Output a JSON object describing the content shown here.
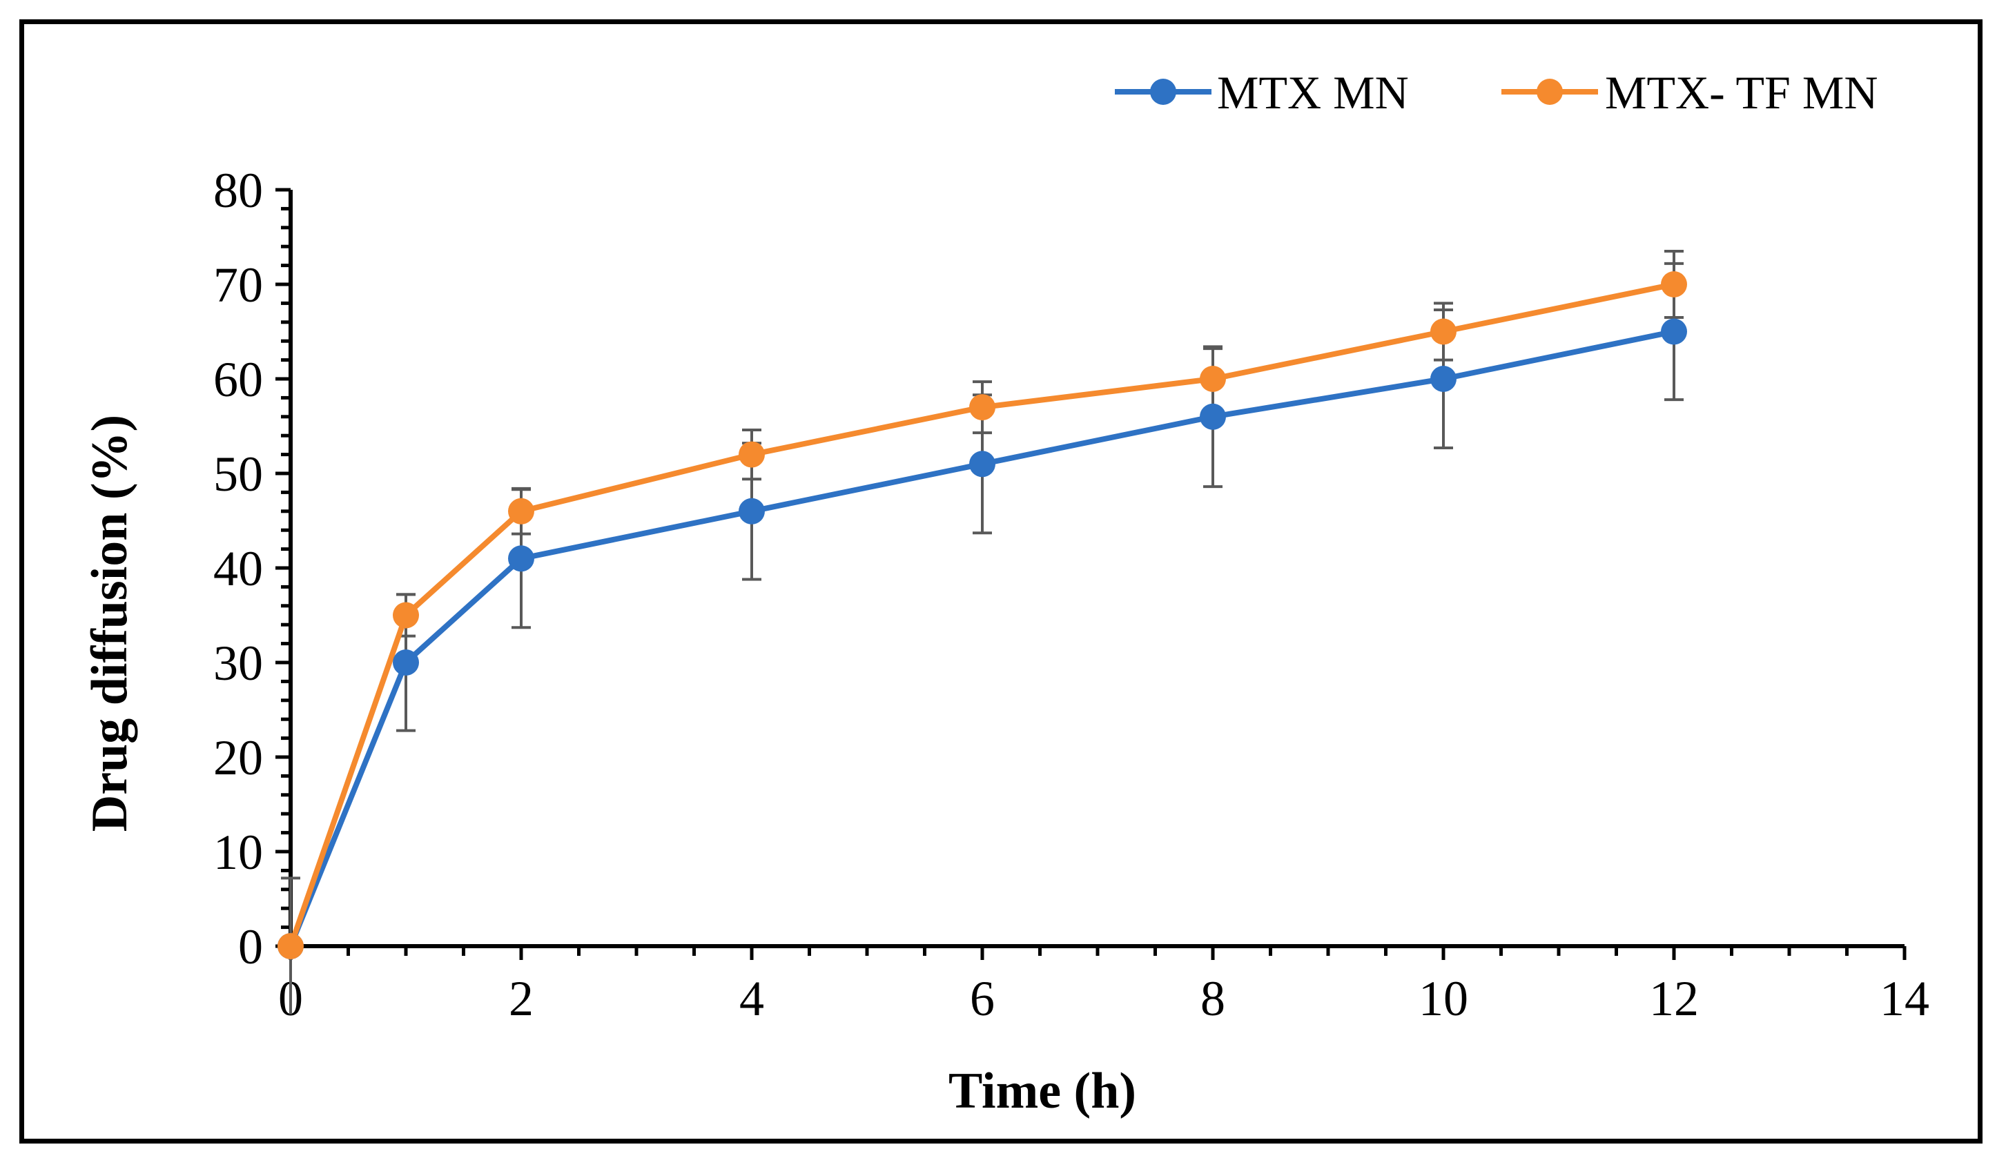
{
  "chart_data": {
    "type": "line",
    "title": "",
    "xlabel": "Time (h)",
    "ylabel": "Drug diffusion (%)",
    "xlim": [
      0,
      14
    ],
    "ylim": [
      0,
      80
    ],
    "x_ticks": [
      0,
      2,
      4,
      6,
      8,
      10,
      12,
      14
    ],
    "y_ticks": [
      0,
      10,
      20,
      30,
      40,
      50,
      60,
      70,
      80
    ],
    "x_tick_labels": [
      "0",
      "2",
      "4",
      "6",
      "8",
      "10",
      "12",
      "14"
    ],
    "y_tick_labels": [
      "0",
      "10",
      "20",
      "30",
      "40",
      "50",
      "60",
      "70",
      "80"
    ],
    "x_minor_step": 0.5,
    "y_minor_step": 2,
    "grid": false,
    "legend_position": "top-right",
    "x": [
      0,
      1,
      2,
      4,
      6,
      8,
      10,
      12
    ],
    "series": [
      {
        "name": "MTX MN",
        "color": "#2E72C4",
        "values": [
          0,
          30,
          41,
          46,
          51,
          56,
          60,
          65
        ],
        "errors": [
          7.2,
          7.2,
          7.3,
          7.2,
          7.3,
          7.4,
          7.3,
          7.2
        ]
      },
      {
        "name": "MTX- TF MN",
        "color": "#F58A2E",
        "values": [
          0,
          35,
          46,
          52,
          57,
          60,
          65,
          70
        ],
        "errors": [
          0,
          2.2,
          2.4,
          2.6,
          2.7,
          3.2,
          3.0,
          3.5
        ]
      }
    ],
    "error_bar_color": "#595959",
    "axis_color": "#000000"
  }
}
